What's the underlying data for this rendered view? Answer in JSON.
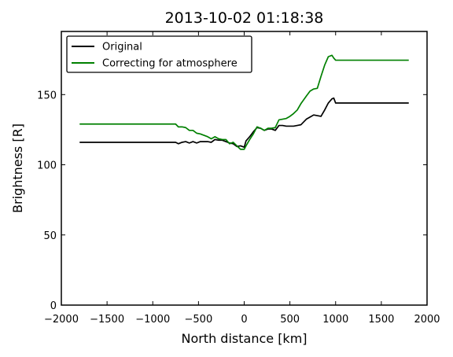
{
  "chart_data": {
    "type": "line",
    "title": "2013-10-02 01:18:38",
    "xlabel": "North distance [km]",
    "ylabel": "Brightness [R]",
    "xlim": [
      -2000,
      2000
    ],
    "ylim": [
      0,
      195
    ],
    "xticks": [
      -2000,
      -1500,
      -1000,
      -500,
      0,
      500,
      1000,
      1500,
      2000
    ],
    "xtick_labels": [
      "−2000",
      "−1500",
      "−1000",
      "−500",
      "0",
      "500",
      "1000",
      "1500",
      "2000"
    ],
    "yticks": [
      0,
      50,
      100,
      150
    ],
    "ytick_labels": [
      "0",
      "50",
      "100",
      "150"
    ],
    "grid": false,
    "legend_position": "top-left",
    "series": [
      {
        "name": "Original",
        "color": "#000000",
        "x": [
          -1800,
          -750,
          -720,
          -680,
          -640,
          -600,
          -560,
          -520,
          -480,
          -440,
          -400,
          -360,
          -320,
          -280,
          -240,
          -200,
          -160,
          -120,
          -80,
          -40,
          0,
          20,
          60,
          100,
          140,
          180,
          220,
          260,
          300,
          340,
          380,
          420,
          460,
          500,
          540,
          580,
          620,
          680,
          720,
          760,
          800,
          840,
          880,
          920,
          960,
          980,
          1000,
          1050,
          1800
        ],
        "y": [
          116,
          116,
          115,
          116,
          116.5,
          115.5,
          116.5,
          115.5,
          116.5,
          116.5,
          116.5,
          116,
          118,
          117.5,
          117.5,
          116.5,
          115.5,
          115,
          113,
          113.5,
          112.5,
          117,
          120,
          123.5,
          126.5,
          126,
          124.5,
          125.5,
          125.5,
          124.5,
          128,
          128,
          127.5,
          127.5,
          127.5,
          128,
          128.5,
          132.5,
          134,
          135.5,
          135,
          134.5,
          139,
          144,
          147,
          147.5,
          144,
          144,
          144
        ]
      },
      {
        "name": "Correcting for atmosphere",
        "color": "#008000",
        "x": [
          -1800,
          -750,
          -720,
          -680,
          -640,
          -600,
          -560,
          -520,
          -480,
          -440,
          -400,
          -360,
          -320,
          -280,
          -240,
          -200,
          -160,
          -120,
          -80,
          -40,
          0,
          20,
          60,
          100,
          140,
          180,
          220,
          260,
          300,
          340,
          380,
          420,
          460,
          500,
          540,
          580,
          620,
          680,
          720,
          760,
          800,
          840,
          880,
          920,
          960,
          980,
          1000,
          1050,
          1800
        ],
        "y": [
          129,
          129,
          127,
          127,
          126.5,
          124.5,
          124.5,
          122.5,
          122,
          121,
          120,
          118.5,
          120,
          118.5,
          118,
          118,
          115,
          116,
          113.5,
          111,
          111,
          113.5,
          118,
          122,
          127,
          126,
          124.5,
          126,
          126,
          126.5,
          132,
          132.5,
          133,
          134.5,
          136.5,
          139,
          143.5,
          149,
          152.5,
          154,
          154.5,
          163,
          171,
          177,
          178,
          176,
          174.5,
          174.5,
          174.5
        ]
      }
    ]
  }
}
